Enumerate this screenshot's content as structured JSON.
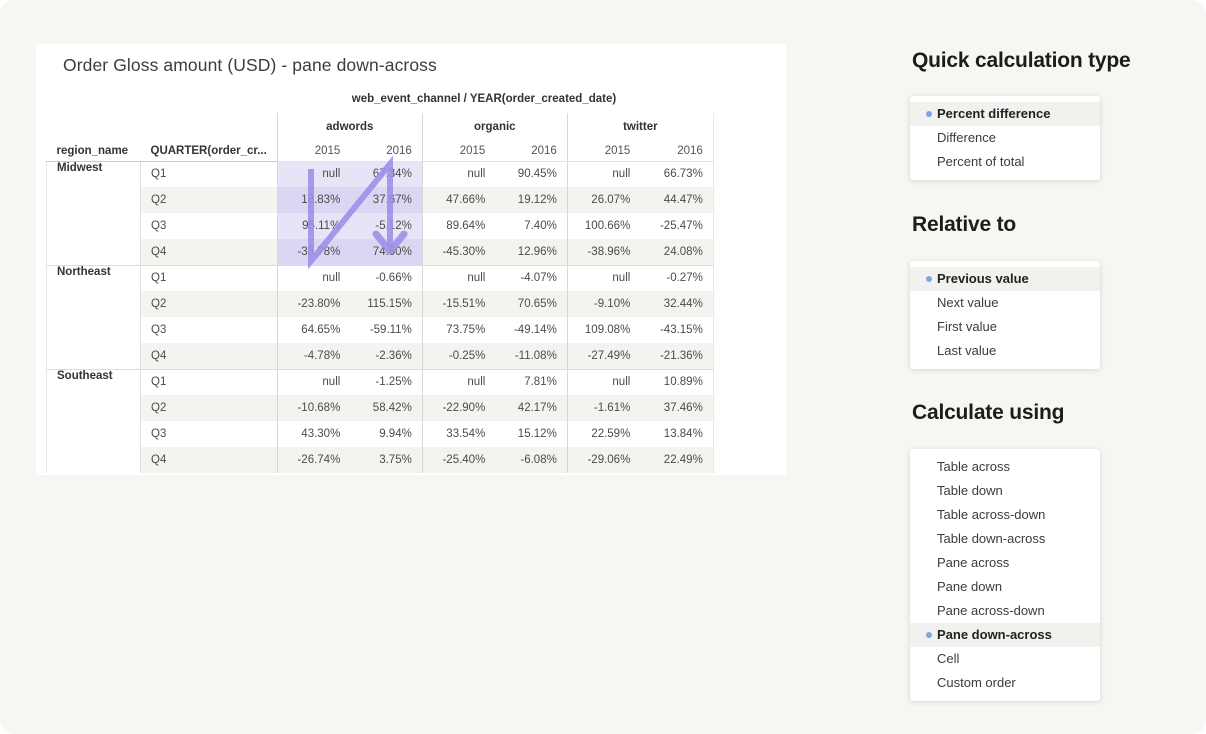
{
  "report": {
    "title": "Order Gloss amount (USD) - pane down-across",
    "table": {
      "top_header": "web_event_channel / YEAR(order_created_date)",
      "row_headers": {
        "region": "region_name",
        "quarter": "QUARTER(order_cr..."
      },
      "channels": [
        "adwords",
        "organic",
        "twitter"
      ],
      "years": [
        "2015",
        "2016"
      ],
      "regions": [
        {
          "name": "Midwest",
          "highlighted_channel": "adwords",
          "rows": [
            {
              "quarter": "Q1",
              "values": [
                "null",
                "67.34%",
                "null",
                "90.45%",
                "null",
                "66.73%"
              ]
            },
            {
              "quarter": "Q2",
              "values": [
                "18.83%",
                "37.67%",
                "47.66%",
                "19.12%",
                "26.07%",
                "44.47%"
              ]
            },
            {
              "quarter": "Q3",
              "values": [
                "95.11%",
                "-5.12%",
                "89.64%",
                "7.40%",
                "100.66%",
                "-25.47%"
              ]
            },
            {
              "quarter": "Q4",
              "values": [
                "-35.78%",
                "74.50%",
                "-45.30%",
                "12.96%",
                "-38.96%",
                "24.08%"
              ]
            }
          ]
        },
        {
          "name": "Northeast",
          "rows": [
            {
              "quarter": "Q1",
              "values": [
                "null",
                "-0.66%",
                "null",
                "-4.07%",
                "null",
                "-0.27%"
              ]
            },
            {
              "quarter": "Q2",
              "values": [
                "-23.80%",
                "115.15%",
                "-15.51%",
                "70.65%",
                "-9.10%",
                "32.44%"
              ]
            },
            {
              "quarter": "Q3",
              "values": [
                "64.65%",
                "-59.11%",
                "73.75%",
                "-49.14%",
                "109.08%",
                "-43.15%"
              ]
            },
            {
              "quarter": "Q4",
              "values": [
                "-4.78%",
                "-2.36%",
                "-0.25%",
                "-11.08%",
                "-27.49%",
                "-21.36%"
              ]
            }
          ]
        },
        {
          "name": "Southeast",
          "rows": [
            {
              "quarter": "Q1",
              "values": [
                "null",
                "-1.25%",
                "null",
                "7.81%",
                "null",
                "10.89%"
              ]
            },
            {
              "quarter": "Q2",
              "values": [
                "-10.68%",
                "58.42%",
                "-22.90%",
                "42.17%",
                "-1.61%",
                "37.46%"
              ]
            },
            {
              "quarter": "Q3",
              "values": [
                "43.30%",
                "9.94%",
                "33.54%",
                "15.12%",
                "22.59%",
                "13.84%"
              ]
            },
            {
              "quarter": "Q4",
              "values": [
                "-26.74%",
                "3.75%",
                "-25.40%",
                "-6.08%",
                "-29.06%",
                "22.49%"
              ]
            }
          ]
        }
      ]
    }
  },
  "panels": [
    {
      "key": "quick",
      "heading": "Quick calculation type",
      "options": [
        "Percent difference",
        "Difference",
        "Percent of total"
      ],
      "selected_index": 0
    },
    {
      "key": "rel",
      "heading": "Relative to",
      "options": [
        "Previous value",
        "Next value",
        "First value",
        "Last value"
      ],
      "selected_index": 0
    },
    {
      "key": "calc",
      "heading": "Calculate using",
      "options": [
        "Table across",
        "Table down",
        "Table across-down",
        "Table down-across",
        "Pane across",
        "Pane down",
        "Pane across-down",
        "Pane down-across",
        "Cell",
        "Custom order"
      ],
      "selected_index": 7
    }
  ],
  "colors": {
    "page_background": "#f7f6f2",
    "card_background": "#ffffff",
    "arrow": "#a08fe8",
    "highlight_light": "#e8e4f8",
    "highlight_dark": "#dcd6f2",
    "row_band": "#f4f3f0",
    "selected_option_bg": "#f2f1ee",
    "selected_dot_blue": "#80a3e6"
  }
}
